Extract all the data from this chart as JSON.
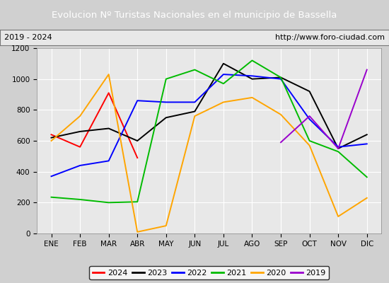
{
  "title": "Evolucion Nº Turistas Nacionales en el municipio de Bassella",
  "subtitle_left": "2019 - 2024",
  "subtitle_right": "http://www.foro-ciudad.com",
  "title_bg": "#4472C4",
  "subtitle_bg": "#E8E8E8",
  "outer_bg": "#D0D0D0",
  "plot_bg": "#E8E8E8",
  "months": [
    "ENE",
    "FEB",
    "MAR",
    "ABR",
    "MAY",
    "JUN",
    "JUL",
    "AGO",
    "SEP",
    "OCT",
    "NOV",
    "DIC"
  ],
  "ylim": [
    0,
    1200
  ],
  "yticks": [
    0,
    200,
    400,
    600,
    800,
    1000,
    1200
  ],
  "series": {
    "2024": {
      "color": "#FF0000",
      "values": [
        640,
        560,
        910,
        490,
        null,
        null,
        null,
        null,
        null,
        null,
        null,
        null
      ]
    },
    "2023": {
      "color": "#000000",
      "values": [
        620,
        660,
        680,
        600,
        750,
        790,
        1100,
        1000,
        1010,
        920,
        550,
        640
      ]
    },
    "2022": {
      "color": "#0000FF",
      "values": [
        370,
        440,
        470,
        860,
        850,
        850,
        1030,
        1020,
        1000,
        740,
        560,
        580
      ]
    },
    "2021": {
      "color": "#00BB00",
      "values": [
        235,
        220,
        200,
        205,
        1000,
        1060,
        970,
        1120,
        1010,
        600,
        530,
        365
      ]
    },
    "2020": {
      "color": "#FFA500",
      "values": [
        600,
        760,
        1030,
        10,
        50,
        760,
        850,
        880,
        770,
        570,
        110,
        230
      ]
    },
    "2019": {
      "color": "#9900CC",
      "values": [
        null,
        null,
        null,
        null,
        null,
        null,
        null,
        null,
        590,
        760,
        550,
        1060
      ]
    }
  },
  "legend_order": [
    "2024",
    "2023",
    "2022",
    "2021",
    "2020",
    "2019"
  ]
}
